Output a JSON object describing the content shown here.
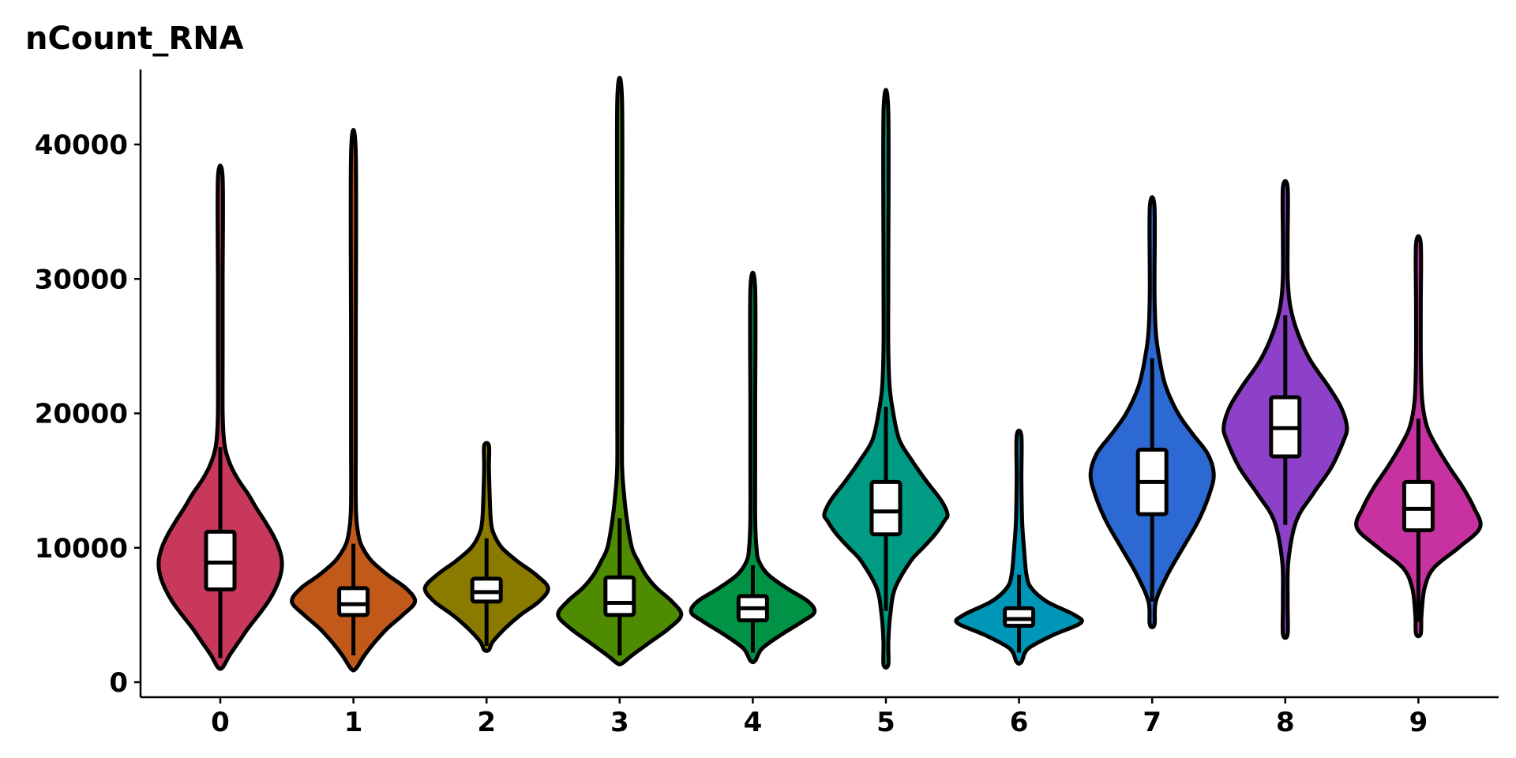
{
  "chart_data": {
    "type": "violin",
    "title": "nCount_RNA",
    "xlabel": "",
    "ylabel": "",
    "ylim": [
      -1000,
      45500
    ],
    "y_ticks": [
      0,
      10000,
      20000,
      30000,
      40000
    ],
    "y_tick_labels": [
      "0",
      "10000",
      "20000",
      "30000",
      "40000"
    ],
    "grid": false,
    "legend": "none",
    "categories": [
      "0",
      "1",
      "2",
      "3",
      "4",
      "5",
      "6",
      "7",
      "8",
      "9"
    ],
    "series": [
      {
        "category": "0",
        "color": "#C8385A",
        "min": 1100,
        "q1": 6900,
        "median": 8900,
        "q3": 11200,
        "max": 37500,
        "box_lower": 1800,
        "box_upper": 17500,
        "profile": [
          [
            1100,
            0.02
          ],
          [
            2000,
            0.15
          ],
          [
            3000,
            0.3
          ],
          [
            4000,
            0.45
          ],
          [
            5000,
            0.62
          ],
          [
            6000,
            0.78
          ],
          [
            7000,
            0.9
          ],
          [
            8000,
            0.98
          ],
          [
            9000,
            1.0
          ],
          [
            10000,
            0.95
          ],
          [
            11000,
            0.85
          ],
          [
            12000,
            0.72
          ],
          [
            13000,
            0.58
          ],
          [
            14000,
            0.45
          ],
          [
            15000,
            0.3
          ],
          [
            16000,
            0.18
          ],
          [
            17000,
            0.1
          ],
          [
            18000,
            0.06
          ],
          [
            20000,
            0.035
          ],
          [
            25000,
            0.02
          ],
          [
            30000,
            0.015
          ],
          [
            37500,
            0.01
          ]
        ]
      },
      {
        "category": "1",
        "color": "#C0591A",
        "min": 1000,
        "q1": 5000,
        "median": 5800,
        "q3": 7000,
        "max": 39300,
        "box_lower": 2000,
        "box_upper": 10300,
        "profile": [
          [
            1000,
            0.02
          ],
          [
            2000,
            0.18
          ],
          [
            3000,
            0.35
          ],
          [
            4000,
            0.55
          ],
          [
            5000,
            0.8
          ],
          [
            6000,
            1.0
          ],
          [
            7000,
            0.85
          ],
          [
            8000,
            0.55
          ],
          [
            9000,
            0.3
          ],
          [
            10000,
            0.15
          ],
          [
            11000,
            0.08
          ],
          [
            13000,
            0.04
          ],
          [
            18000,
            0.02
          ],
          [
            25000,
            0.012
          ],
          [
            39300,
            0.008
          ]
        ]
      },
      {
        "category": "2",
        "color": "#8B7A00",
        "min": 2400,
        "q1": 6000,
        "median": 6700,
        "q3": 7700,
        "max": 17600,
        "box_lower": 2700,
        "box_upper": 10700,
        "profile": [
          [
            2400,
            0.03
          ],
          [
            3000,
            0.1
          ],
          [
            4000,
            0.3
          ],
          [
            5000,
            0.55
          ],
          [
            6000,
            0.85
          ],
          [
            7000,
            1.0
          ],
          [
            8000,
            0.8
          ],
          [
            9000,
            0.5
          ],
          [
            10000,
            0.25
          ],
          [
            11000,
            0.12
          ],
          [
            12000,
            0.07
          ],
          [
            14000,
            0.05
          ],
          [
            16000,
            0.035
          ],
          [
            17600,
            0.02
          ]
        ]
      },
      {
        "category": "3",
        "color": "#4E8B00",
        "min": 1400,
        "q1": 5000,
        "median": 5900,
        "q3": 7800,
        "max": 43300,
        "box_lower": 2000,
        "box_upper": 12200,
        "profile": [
          [
            1400,
            0.02
          ],
          [
            2000,
            0.2
          ],
          [
            3000,
            0.5
          ],
          [
            4000,
            0.8
          ],
          [
            5000,
            1.0
          ],
          [
            6000,
            0.85
          ],
          [
            7000,
            0.6
          ],
          [
            8000,
            0.42
          ],
          [
            9000,
            0.3
          ],
          [
            10000,
            0.2
          ],
          [
            12000,
            0.12
          ],
          [
            14000,
            0.07
          ],
          [
            16000,
            0.04
          ],
          [
            20000,
            0.02
          ],
          [
            30000,
            0.012
          ],
          [
            43300,
            0.008
          ]
        ]
      },
      {
        "category": "4",
        "color": "#009245",
        "min": 1600,
        "q1": 4600,
        "median": 5500,
        "q3": 6400,
        "max": 29300,
        "box_lower": 2200,
        "box_upper": 8700,
        "profile": [
          [
            1600,
            0.02
          ],
          [
            2500,
            0.15
          ],
          [
            3500,
            0.45
          ],
          [
            4500,
            0.8
          ],
          [
            5200,
            1.0
          ],
          [
            6000,
            0.9
          ],
          [
            7000,
            0.55
          ],
          [
            8000,
            0.25
          ],
          [
            9000,
            0.1
          ],
          [
            10000,
            0.06
          ],
          [
            12000,
            0.04
          ],
          [
            16000,
            0.03
          ],
          [
            20000,
            0.02
          ],
          [
            29300,
            0.01
          ]
        ]
      },
      {
        "category": "5",
        "color": "#009B82",
        "min": 1300,
        "q1": 11000,
        "median": 12700,
        "q3": 14900,
        "max": 42500,
        "box_lower": 5300,
        "box_upper": 20500,
        "profile": [
          [
            1300,
            0.02
          ],
          [
            3000,
            0.04
          ],
          [
            5000,
            0.07
          ],
          [
            7000,
            0.15
          ],
          [
            9000,
            0.4
          ],
          [
            10000,
            0.6
          ],
          [
            11000,
            0.8
          ],
          [
            12000,
            0.95
          ],
          [
            12500,
            1.0
          ],
          [
            13500,
            0.9
          ],
          [
            15000,
            0.65
          ],
          [
            16500,
            0.42
          ],
          [
            18000,
            0.22
          ],
          [
            20000,
            0.12
          ],
          [
            22000,
            0.06
          ],
          [
            25000,
            0.03
          ],
          [
            30000,
            0.015
          ],
          [
            42500,
            0.008
          ]
        ]
      },
      {
        "category": "6",
        "color": "#0096B8",
        "min": 1500,
        "q1": 4200,
        "median": 4700,
        "q3": 5500,
        "max": 18300,
        "box_lower": 2200,
        "box_upper": 8000,
        "profile": [
          [
            1500,
            0.03
          ],
          [
            2500,
            0.15
          ],
          [
            3500,
            0.55
          ],
          [
            4400,
            1.0
          ],
          [
            5000,
            0.9
          ],
          [
            6000,
            0.45
          ],
          [
            7000,
            0.2
          ],
          [
            8000,
            0.12
          ],
          [
            10000,
            0.08
          ],
          [
            12000,
            0.05
          ],
          [
            15000,
            0.03
          ],
          [
            18300,
            0.02
          ]
        ]
      },
      {
        "category": "7",
        "color": "#2D69D2",
        "min": 4300,
        "q1": 12500,
        "median": 14900,
        "q3": 17300,
        "max": 35300,
        "box_lower": 6000,
        "box_upper": 24100,
        "profile": [
          [
            4300,
            0.02
          ],
          [
            6000,
            0.06
          ],
          [
            8000,
            0.25
          ],
          [
            10000,
            0.5
          ],
          [
            12000,
            0.75
          ],
          [
            14000,
            0.93
          ],
          [
            15500,
            1.0
          ],
          [
            17000,
            0.9
          ],
          [
            18500,
            0.65
          ],
          [
            20000,
            0.42
          ],
          [
            22000,
            0.22
          ],
          [
            24000,
            0.12
          ],
          [
            26000,
            0.06
          ],
          [
            29000,
            0.03
          ],
          [
            35300,
            0.015
          ]
        ]
      },
      {
        "category": "8",
        "color": "#8C41C8",
        "min": 3600,
        "q1": 16800,
        "median": 18900,
        "q3": 21200,
        "max": 36800,
        "box_lower": 11700,
        "box_upper": 27300,
        "profile": [
          [
            3600,
            0.02
          ],
          [
            6000,
            0.02
          ],
          [
            9000,
            0.05
          ],
          [
            12000,
            0.18
          ],
          [
            14000,
            0.45
          ],
          [
            16000,
            0.75
          ],
          [
            18000,
            0.95
          ],
          [
            19000,
            1.0
          ],
          [
            20500,
            0.9
          ],
          [
            22000,
            0.7
          ],
          [
            24000,
            0.4
          ],
          [
            26000,
            0.2
          ],
          [
            28000,
            0.08
          ],
          [
            30000,
            0.04
          ],
          [
            33000,
            0.025
          ],
          [
            36800,
            0.015
          ]
        ]
      },
      {
        "category": "9",
        "color": "#C832A0",
        "min": 3600,
        "q1": 11300,
        "median": 12900,
        "q3": 14900,
        "max": 32600,
        "box_lower": 4500,
        "box_upper": 19600,
        "profile": [
          [
            3600,
            0.03
          ],
          [
            5000,
            0.05
          ],
          [
            7000,
            0.1
          ],
          [
            8500,
            0.25
          ],
          [
            10000,
            0.65
          ],
          [
            11500,
            1.0
          ],
          [
            13000,
            0.9
          ],
          [
            14500,
            0.72
          ],
          [
            16000,
            0.5
          ],
          [
            17500,
            0.3
          ],
          [
            19000,
            0.14
          ],
          [
            21000,
            0.06
          ],
          [
            24000,
            0.04
          ],
          [
            28000,
            0.03
          ],
          [
            32600,
            0.03
          ]
        ]
      }
    ]
  }
}
